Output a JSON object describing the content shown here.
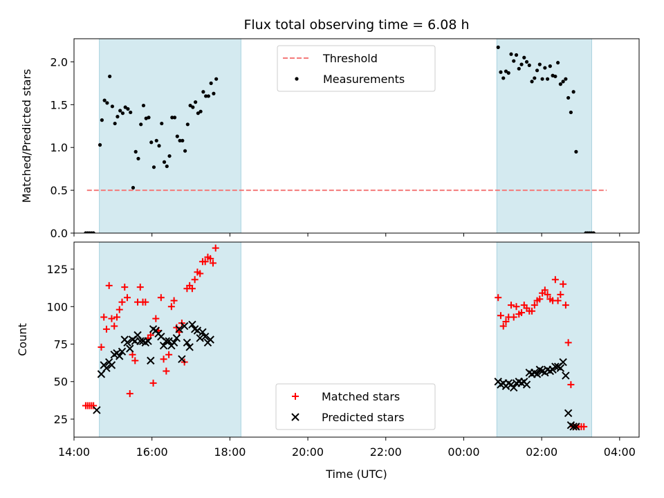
{
  "figure": {
    "title": "Flux total observing time = 6.08 h",
    "xlabel": "Time (UTC)"
  },
  "chart_data": [
    {
      "type": "scatter",
      "panel": "top",
      "ylabel": "Matched/Predicted stars",
      "xlim": [
        "14:00",
        "04:30"
      ],
      "ylim": [
        0,
        2.27
      ],
      "yticks": [
        "0.0",
        "0.5",
        "1.0",
        "1.5",
        "2.0"
      ],
      "shaded_intervals": [
        [
          "14:39",
          "18:17"
        ],
        [
          "00:51",
          "03:17"
        ]
      ],
      "threshold": {
        "name": "Threshold",
        "value": 0.5,
        "x_range": [
          "14:20",
          "03:40"
        ],
        "color": "#f47a7a"
      },
      "series": [
        {
          "name": "Measurements",
          "color": "#000000",
          "points": [
            [
              "14:18",
              0.0
            ],
            [
              "14:21",
              0.0
            ],
            [
              "14:24",
              0.0
            ],
            [
              "14:27",
              0.0
            ],
            [
              "14:30",
              0.0
            ],
            [
              "14:40",
              1.03
            ],
            [
              "14:43",
              1.32
            ],
            [
              "14:47",
              1.55
            ],
            [
              "14:51",
              1.52
            ],
            [
              "14:55",
              1.83
            ],
            [
              "14:59",
              1.48
            ],
            [
              "15:03",
              1.28
            ],
            [
              "15:07",
              1.36
            ],
            [
              "15:11",
              1.43
            ],
            [
              "15:15",
              1.4
            ],
            [
              "15:19",
              1.47
            ],
            [
              "15:23",
              1.45
            ],
            [
              "15:27",
              1.41
            ],
            [
              "15:31",
              0.53
            ],
            [
              "15:35",
              0.95
            ],
            [
              "15:39",
              0.87
            ],
            [
              "15:43",
              1.27
            ],
            [
              "15:47",
              1.49
            ],
            [
              "15:51",
              1.34
            ],
            [
              "15:55",
              1.35
            ],
            [
              "15:59",
              1.06
            ],
            [
              "16:03",
              0.77
            ],
            [
              "16:07",
              1.08
            ],
            [
              "16:11",
              1.02
            ],
            [
              "16:15",
              1.28
            ],
            [
              "16:19",
              0.83
            ],
            [
              "16:23",
              0.78
            ],
            [
              "16:27",
              0.9
            ],
            [
              "16:31",
              1.35
            ],
            [
              "16:35",
              1.35
            ],
            [
              "16:39",
              1.13
            ],
            [
              "16:43",
              1.08
            ],
            [
              "16:47",
              1.08
            ],
            [
              "16:51",
              0.96
            ],
            [
              "16:55",
              1.27
            ],
            [
              "16:59",
              1.49
            ],
            [
              "17:03",
              1.47
            ],
            [
              "17:07",
              1.53
            ],
            [
              "17:11",
              1.4
            ],
            [
              "17:15",
              1.42
            ],
            [
              "17:19",
              1.65
            ],
            [
              "17:23",
              1.6
            ],
            [
              "17:27",
              1.6
            ],
            [
              "17:31",
              1.75
            ],
            [
              "17:35",
              1.63
            ],
            [
              "17:39",
              1.8
            ],
            [
              "00:53",
              2.17
            ],
            [
              "00:57",
              1.88
            ],
            [
              "01:01",
              1.81
            ],
            [
              "01:05",
              1.89
            ],
            [
              "01:09",
              1.87
            ],
            [
              "01:13",
              2.09
            ],
            [
              "01:17",
              2.01
            ],
            [
              "01:21",
              2.08
            ],
            [
              "01:25",
              1.92
            ],
            [
              "01:29",
              1.97
            ],
            [
              "01:33",
              2.05
            ],
            [
              "01:37",
              2.0
            ],
            [
              "01:41",
              1.96
            ],
            [
              "01:45",
              1.77
            ],
            [
              "01:49",
              1.81
            ],
            [
              "01:53",
              1.9
            ],
            [
              "01:57",
              1.97
            ],
            [
              "02:01",
              1.8
            ],
            [
              "02:05",
              1.93
            ],
            [
              "02:09",
              1.8
            ],
            [
              "02:13",
              1.95
            ],
            [
              "02:17",
              1.84
            ],
            [
              "02:21",
              1.83
            ],
            [
              "02:25",
              1.99
            ],
            [
              "02:29",
              1.74
            ],
            [
              "02:33",
              1.77
            ],
            [
              "02:37",
              1.8
            ],
            [
              "02:41",
              1.58
            ],
            [
              "02:45",
              1.41
            ],
            [
              "02:49",
              1.65
            ],
            [
              "02:53",
              0.95
            ],
            [
              "03:08",
              0.0
            ],
            [
              "03:11",
              0.0
            ],
            [
              "03:14",
              0.0
            ],
            [
              "03:17",
              0.0
            ],
            [
              "03:20",
              0.0
            ]
          ]
        }
      ],
      "legend": {
        "placement": "upper center",
        "entries": [
          "Threshold",
          "Measurements"
        ]
      }
    },
    {
      "type": "scatter",
      "panel": "bottom",
      "ylabel": "Count",
      "xlim": [
        "14:00",
        "04:30"
      ],
      "ylim": [
        13,
        143
      ],
      "yticks": [
        "25",
        "50",
        "75",
        "100",
        "125"
      ],
      "xticks": [
        "14:00",
        "16:00",
        "18:00",
        "20:00",
        "22:00",
        "00:00",
        "02:00",
        "04:00"
      ],
      "shaded_intervals": [
        [
          "14:39",
          "18:17"
        ],
        [
          "00:51",
          "03:17"
        ]
      ],
      "series": [
        {
          "name": "Matched stars",
          "marker": "+",
          "color": "#ff0000",
          "points": [
            [
              "14:18",
              34
            ],
            [
              "14:21",
              34
            ],
            [
              "14:24",
              34
            ],
            [
              "14:27",
              34
            ],
            [
              "14:30",
              34
            ],
            [
              "14:42",
              73
            ],
            [
              "14:46",
              93
            ],
            [
              "14:50",
              85
            ],
            [
              "14:54",
              114
            ],
            [
              "14:58",
              92
            ],
            [
              "15:02",
              87
            ],
            [
              "15:06",
              93
            ],
            [
              "15:10",
              98
            ],
            [
              "15:14",
              103
            ],
            [
              "15:18",
              113
            ],
            [
              "15:22",
              106
            ],
            [
              "15:26",
              42
            ],
            [
              "15:30",
              68
            ],
            [
              "15:34",
              64
            ],
            [
              "15:38",
              103
            ],
            [
              "15:42",
              113
            ],
            [
              "15:46",
              103
            ],
            [
              "15:50",
              103
            ],
            [
              "15:54",
              79
            ],
            [
              "15:58",
              81
            ],
            [
              "16:02",
              49
            ],
            [
              "16:06",
              92
            ],
            [
              "16:10",
              84
            ],
            [
              "16:14",
              106
            ],
            [
              "16:18",
              65
            ],
            [
              "16:22",
              57
            ],
            [
              "16:26",
              68
            ],
            [
              "16:30",
              100
            ],
            [
              "16:34",
              104
            ],
            [
              "16:38",
              86
            ],
            [
              "16:42",
              83
            ],
            [
              "16:46",
              89
            ],
            [
              "16:50",
              63
            ],
            [
              "16:54",
              112
            ],
            [
              "16:58",
              114
            ],
            [
              "17:02",
              112
            ],
            [
              "17:06",
              118
            ],
            [
              "17:10",
              123
            ],
            [
              "17:14",
              122
            ],
            [
              "17:18",
              130
            ],
            [
              "17:22",
              130
            ],
            [
              "17:26",
              133
            ],
            [
              "17:30",
              132
            ],
            [
              "17:34",
              129
            ],
            [
              "17:38",
              139
            ],
            [
              "00:53",
              106
            ],
            [
              "00:57",
              94
            ],
            [
              "01:01",
              87
            ],
            [
              "01:05",
              90
            ],
            [
              "01:09",
              93
            ],
            [
              "01:13",
              101
            ],
            [
              "01:17",
              93
            ],
            [
              "01:21",
              100
            ],
            [
              "01:25",
              95
            ],
            [
              "01:29",
              96
            ],
            [
              "01:33",
              101
            ],
            [
              "01:37",
              99
            ],
            [
              "01:41",
              97
            ],
            [
              "01:45",
              97
            ],
            [
              "01:49",
              101
            ],
            [
              "01:53",
              104
            ],
            [
              "01:57",
              105
            ],
            [
              "02:01",
              109
            ],
            [
              "02:05",
              111
            ],
            [
              "02:09",
              108
            ],
            [
              "02:13",
              105
            ],
            [
              "02:17",
              104
            ],
            [
              "02:21",
              118
            ],
            [
              "02:25",
              104
            ],
            [
              "02:29",
              108
            ],
            [
              "02:33",
              115
            ],
            [
              "02:37",
              101
            ],
            [
              "02:41",
              76
            ],
            [
              "02:45",
              48
            ],
            [
              "02:49",
              20
            ],
            [
              "02:53",
              20
            ],
            [
              "02:57",
              20
            ],
            [
              "03:01",
              20
            ],
            [
              "03:05",
              20
            ]
          ]
        },
        {
          "name": "Predicted stars",
          "marker": "x",
          "color": "#000000",
          "points": [
            [
              "14:35",
              31
            ],
            [
              "14:42",
              55
            ],
            [
              "14:46",
              61
            ],
            [
              "14:50",
              59
            ],
            [
              "14:54",
              63
            ],
            [
              "14:58",
              61
            ],
            [
              "15:02",
              68
            ],
            [
              "15:06",
              69
            ],
            [
              "15:10",
              67
            ],
            [
              "15:14",
              70
            ],
            [
              "15:18",
              78
            ],
            [
              "15:22",
              76
            ],
            [
              "15:26",
              72
            ],
            [
              "15:30",
              78
            ],
            [
              "15:34",
              77
            ],
            [
              "15:38",
              81
            ],
            [
              "15:42",
              77
            ],
            [
              "15:46",
              77
            ],
            [
              "15:50",
              76
            ],
            [
              "15:54",
              77
            ],
            [
              "15:58",
              64
            ],
            [
              "16:02",
              85
            ],
            [
              "16:06",
              84
            ],
            [
              "16:10",
              82
            ],
            [
              "16:14",
              80
            ],
            [
              "16:18",
              74
            ],
            [
              "16:22",
              77
            ],
            [
              "16:26",
              77
            ],
            [
              "16:30",
              74
            ],
            [
              "16:34",
              76
            ],
            [
              "16:38",
              79
            ],
            [
              "16:42",
              85
            ],
            [
              "16:46",
              65
            ],
            [
              "16:50",
              87
            ],
            [
              "16:54",
              76
            ],
            [
              "16:58",
              73
            ],
            [
              "17:02",
              88
            ],
            [
              "17:06",
              85
            ],
            [
              "17:10",
              84
            ],
            [
              "17:14",
              79
            ],
            [
              "17:18",
              83
            ],
            [
              "17:22",
              80
            ],
            [
              "17:26",
              76
            ],
            [
              "17:30",
              78
            ],
            [
              "00:53",
              50
            ],
            [
              "00:57",
              48
            ],
            [
              "01:01",
              49
            ],
            [
              "01:05",
              47
            ],
            [
              "01:09",
              49
            ],
            [
              "01:13",
              48
            ],
            [
              "01:17",
              46
            ],
            [
              "01:21",
              49
            ],
            [
              "01:25",
              50
            ],
            [
              "01:29",
              49
            ],
            [
              "01:33",
              50
            ],
            [
              "01:37",
              48
            ],
            [
              "01:41",
              56
            ],
            [
              "01:45",
              55
            ],
            [
              "01:49",
              56
            ],
            [
              "01:53",
              55
            ],
            [
              "01:57",
              58
            ],
            [
              "02:01",
              57
            ],
            [
              "02:05",
              56
            ],
            [
              "02:09",
              58
            ],
            [
              "02:13",
              57
            ],
            [
              "02:17",
              58
            ],
            [
              "02:21",
              60
            ],
            [
              "02:25",
              60
            ],
            [
              "02:29",
              59
            ],
            [
              "02:33",
              63
            ],
            [
              "02:37",
              54
            ],
            [
              "02:41",
              29
            ],
            [
              "02:45",
              21
            ],
            [
              "02:49",
              20
            ],
            [
              "02:53",
              20
            ]
          ]
        }
      ],
      "legend": {
        "placement": "lower center",
        "entries": [
          "Matched stars",
          "Predicted stars"
        ]
      }
    }
  ]
}
